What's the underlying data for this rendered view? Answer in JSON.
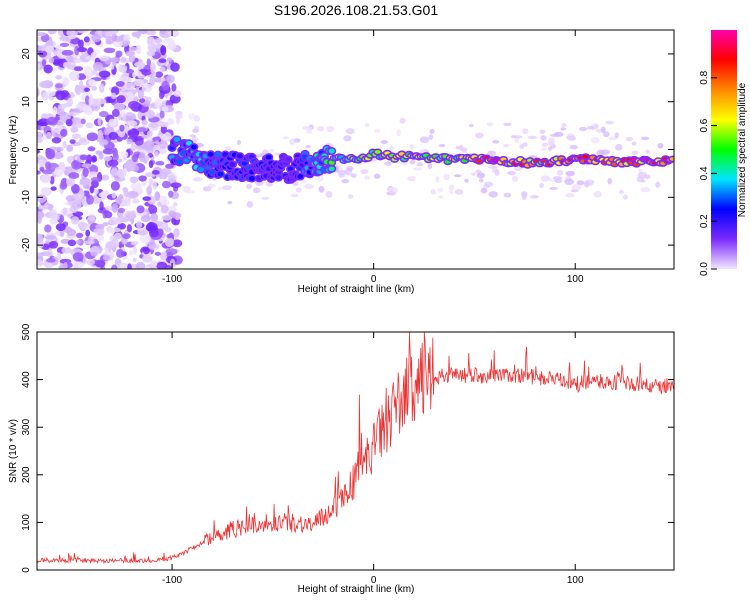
{
  "figure_title": "S196.2026.108.21.53.G01",
  "colors": {
    "snr_line": "#ee3333",
    "frame": "#000000"
  },
  "chart_data": [
    {
      "type": "heatmap",
      "title": "S196.2026.108.21.53.G01",
      "xlabel": "Height of straight line (km)",
      "ylabel": "Frequency (Hz)",
      "xlim": [
        -167,
        149
      ],
      "ylim": [
        -25,
        25
      ],
      "x_ticks": [
        -100,
        0,
        100
      ],
      "y_ticks": [
        -20,
        -10,
        0,
        10,
        20
      ],
      "colorbar": {
        "label": "Normalized spectral amplitude",
        "range": [
          0,
          1
        ],
        "ticks": [
          0.0,
          0.2,
          0.4,
          0.6,
          0.8
        ],
        "tick_labels": [
          "0.0",
          "0.2",
          "0.4",
          "0.6",
          "0.8"
        ],
        "colormap": [
          "#f2e6ff",
          "#7b2bff",
          "#0000ff",
          "#00e5ff",
          "#00ff00",
          "#ffff00",
          "#ff8800",
          "#ff0000",
          "#ff00aa"
        ]
      },
      "trace": {
        "note": "narrow signal ridge frequency (Hz) vs height (km)",
        "x": [
          -100,
          -90,
          -80,
          -70,
          -60,
          -50,
          -40,
          -30,
          -20,
          -10,
          0,
          10,
          20,
          30,
          40,
          50,
          60,
          70,
          80,
          90,
          100,
          110,
          120,
          130,
          140,
          149
        ],
        "frequency": [
          0,
          -1,
          -3,
          -3.5,
          -4,
          -4,
          -4,
          -3,
          -2,
          -2,
          -1,
          -1.5,
          -1.5,
          -2,
          -2,
          -2,
          -2.5,
          -2.5,
          -3,
          -2.5,
          -2,
          -2,
          -2.5,
          -2.5,
          -2.5,
          -2.5
        ],
        "amplitude": [
          0.3,
          0.35,
          0.3,
          0.25,
          0.25,
          0.2,
          0.2,
          0.35,
          0.45,
          0.5,
          0.55,
          0.6,
          0.6,
          0.55,
          0.6,
          0.7,
          0.85,
          0.75,
          0.8,
          0.7,
          0.8,
          0.75,
          0.7,
          0.85,
          0.9,
          0.9
        ]
      }
    },
    {
      "type": "line",
      "xlabel": "Height of straight line (km)",
      "ylabel": "SNR (10 * v/v)",
      "xlim": [
        -167,
        149
      ],
      "ylim": [
        0,
        500
      ],
      "x_ticks": [
        -100,
        0,
        100
      ],
      "y_ticks": [
        0,
        100,
        200,
        300,
        400,
        500
      ],
      "series": [
        {
          "name": "SNR",
          "x": [
            -167,
            -150,
            -130,
            -110,
            -100,
            -90,
            -80,
            -70,
            -60,
            -50,
            -40,
            -30,
            -25,
            -20,
            -15,
            -10,
            -5,
            0,
            5,
            10,
            15,
            20,
            25,
            30,
            40,
            50,
            60,
            70,
            80,
            90,
            100,
            110,
            120,
            130,
            140,
            149
          ],
          "values": [
            20,
            20,
            20,
            20,
            25,
            45,
            70,
            85,
            95,
            100,
            100,
            95,
            110,
            130,
            155,
            185,
            220,
            260,
            300,
            335,
            365,
            390,
            400,
            405,
            410,
            410,
            405,
            410,
            405,
            400,
            390,
            395,
            395,
            390,
            385,
            385
          ]
        }
      ]
    }
  ]
}
